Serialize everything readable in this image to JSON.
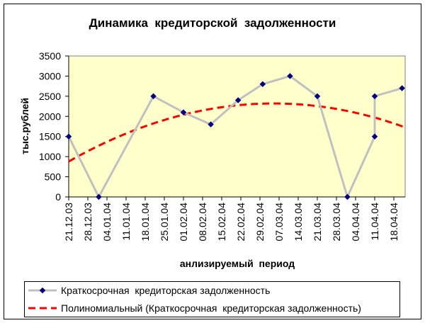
{
  "chart_data": {
    "type": "line",
    "title": "Динамика  кредиторской  задолженности",
    "xlabel": "анлизируемый  период",
    "ylabel": "тыс.рублей",
    "ylim": [
      0,
      3500
    ],
    "yticks": [
      "0",
      "500",
      "1000",
      "1500",
      "2000",
      "2500",
      "3000",
      "3500"
    ],
    "ytick_values": [
      0,
      500,
      1000,
      1500,
      2000,
      2500,
      3000,
      3500
    ],
    "xticks": [
      "21.12.03",
      "28.12.03",
      "04.01.04",
      "11.01.04",
      "18.01.04",
      "25.01.04",
      "01.02.04",
      "08.02.04",
      "15.02.04",
      "22.02.04",
      "29.02.04",
      "07.03.04",
      "14.03.04",
      "21.03.04",
      "28.03.04",
      "04.04.04",
      "11.04.04",
      "18.04.04"
    ],
    "x_start": "21.12.03",
    "x_range_days": [
      0,
      123
    ],
    "tick_step_days": 7,
    "series": [
      {
        "name": "Краткосрочная  кредиторская задолженность",
        "color": "#c0c0c0",
        "marker_color": "#000080",
        "x_dates": [
          "21.12.03",
          "01.01.04",
          "21.01.04",
          "01.02.04",
          "11.02.04",
          "21.02.04",
          "01.03.04",
          "11.03.04",
          "21.03.04",
          "01.04.04",
          "11.04.04",
          "11.04.04",
          "21.04.04"
        ],
        "x_days": [
          0,
          11,
          31,
          42,
          52,
          62,
          71,
          81,
          91,
          102,
          112,
          112,
          122
        ],
        "values": [
          1500,
          0,
          2500,
          2100,
          1800,
          2400,
          2800,
          3000,
          2500,
          0,
          1500,
          2500,
          2700
        ]
      },
      {
        "name": "Полиномиальный (Краткосрочная  кредиторская задолженность)",
        "color": "#ff0000",
        "type": "polynomial-trend",
        "coefficients": [
          880,
          38.4,
          -0.256
        ]
      }
    ],
    "legend_position": "bottom",
    "plot_background": "#ffffcc"
  }
}
